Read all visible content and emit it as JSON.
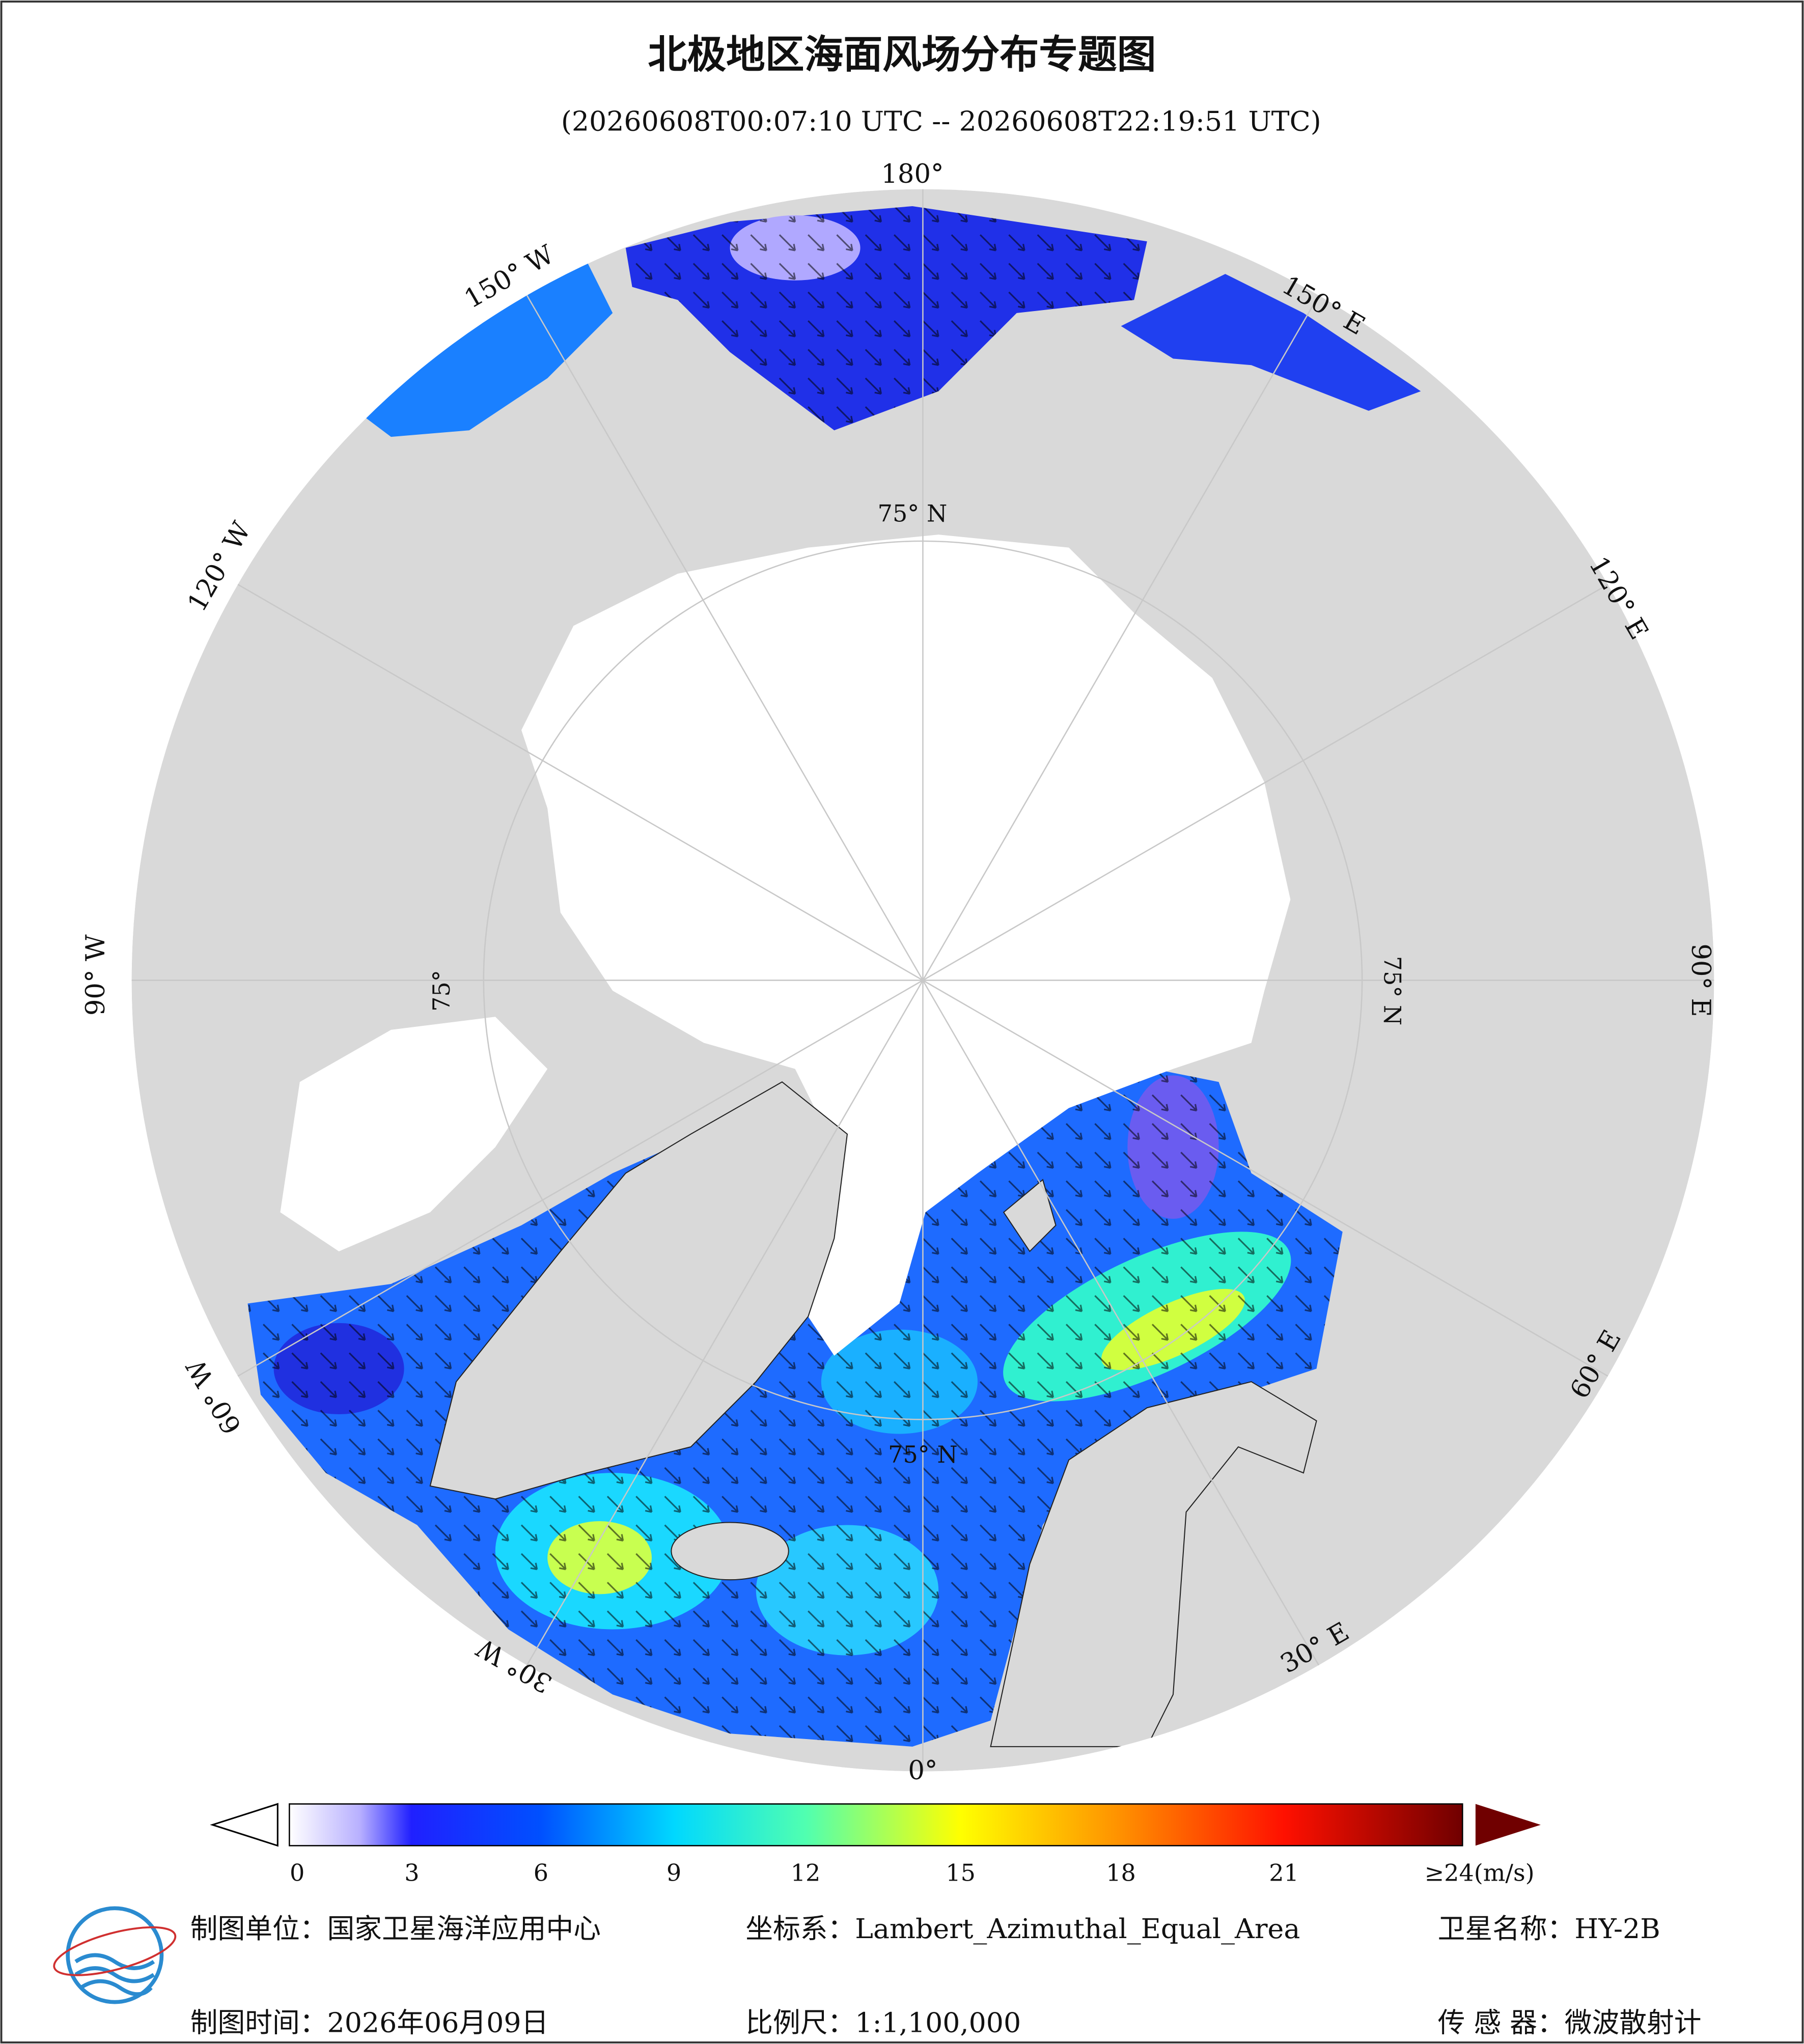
{
  "header": {
    "title": "北极地区海面风场分布专题图",
    "subtitle": "(20260608T00:07:10 UTC -- 20260608T22:19:51 UTC)"
  },
  "map": {
    "longitude_labels": [
      "180°",
      "150° E",
      "120° E",
      "90° E",
      "60° E",
      "30° E",
      "0°",
      "30° W",
      "60° W",
      "90° W",
      "120° W",
      "150° W"
    ],
    "latitude_labels": [
      "75° N",
      "75° N",
      "75°",
      "75° N"
    ]
  },
  "colorbar": {
    "ticks": [
      "0",
      "3",
      "6",
      "9",
      "12",
      "15",
      "18",
      "21",
      "≥24(m/s)"
    ]
  },
  "footer": {
    "unit": "制图单位：国家卫星海洋应用中心",
    "crs": "坐标系：Lambert_Azimuthal_Equal_Area",
    "satellite": "卫星名称：HY-2B",
    "date": "制图时间：2026年06月09日",
    "scale": "比例尺：1:1,100,000",
    "sensor": "传 感 器：微波散射计"
  }
}
